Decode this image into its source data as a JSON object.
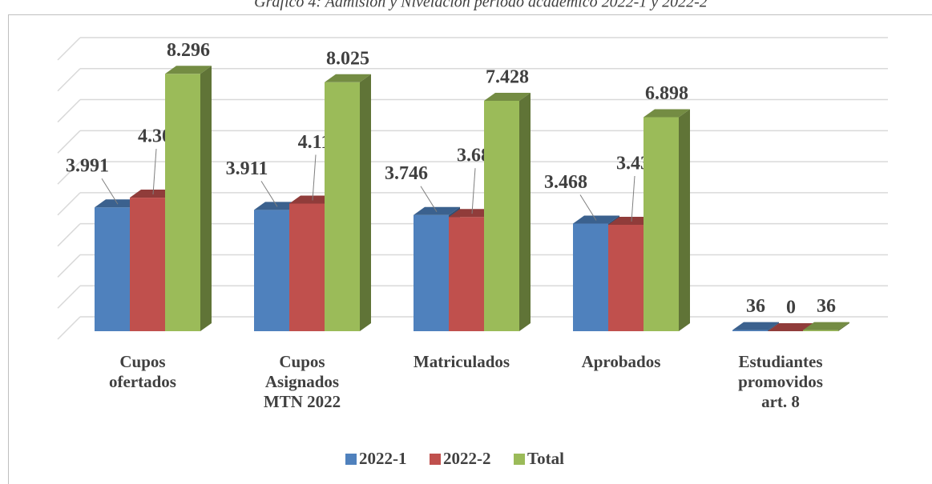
{
  "chart_data": {
    "type": "bar3d",
    "title": "Gráfico 4: Admisión y Nivelación período académico 2022-1 y 2022-2",
    "categories": [
      "Cupos ofertados",
      "Cupos Asignados MTN 2022",
      "Matriculados",
      "Aprobados",
      "Estudiantes promovidos art. 8"
    ],
    "series": [
      {
        "name": "2022-1",
        "color": "#4f81bd",
        "values": [
          3991,
          3911,
          3746,
          3468,
          36
        ],
        "value_labels": [
          "3.991",
          "3.911",
          "3.746",
          "3.468",
          "36"
        ]
      },
      {
        "name": "2022-2",
        "color": "#c0504d",
        "values": [
          4305,
          4114,
          3682,
          3430,
          0
        ],
        "value_labels": [
          "4.305",
          "4.114",
          "3.682",
          "3.430",
          "0"
        ]
      },
      {
        "name": "Total",
        "color": "#9bbb59",
        "values": [
          8296,
          8025,
          7428,
          6898,
          36
        ],
        "value_labels": [
          "8.296",
          "8.025",
          "7.428",
          "6.898",
          "36"
        ]
      }
    ],
    "ylim": [
      0,
      9000
    ],
    "yticks": [
      0,
      1000,
      2000,
      3000,
      4000,
      5000,
      6000,
      7000,
      8000,
      9000
    ],
    "grid": true,
    "legend": "bottom"
  }
}
